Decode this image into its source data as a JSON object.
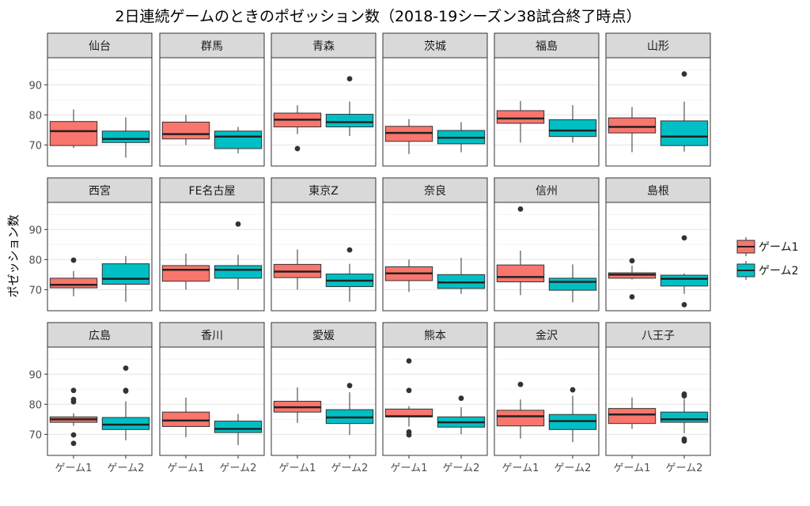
{
  "chart_data": {
    "type": "boxplot",
    "title": "2日連続ゲームのときのポゼッション数（2018-19シーズン38試合終了時点）",
    "ylabel": "ポゼッション数",
    "xlabel": "",
    "ylim": [
      63,
      99
    ],
    "y_ticks": [
      70,
      80,
      90
    ],
    "categories": [
      "ゲーム1",
      "ゲーム2"
    ],
    "legend": {
      "position": "right",
      "entries": [
        {
          "label": "ゲーム1",
          "color": "#F8766D"
        },
        {
          "label": "ゲーム2",
          "color": "#00BFC4"
        }
      ]
    },
    "grid": true,
    "panels": [
      {
        "team": "仙台",
        "boxes": [
          {
            "whisker_low": 69,
            "q1": 69.8,
            "median": 74.6,
            "q3": 77.8,
            "whisker_high": 81.8,
            "outliers": []
          },
          {
            "whisker_low": 65.8,
            "q1": 70.8,
            "median": 72,
            "q3": 74.6,
            "whisker_high": 79.2,
            "outliers": []
          }
        ]
      },
      {
        "team": "群馬",
        "boxes": [
          {
            "whisker_low": 70,
            "q1": 72,
            "median": 73.6,
            "q3": 77.6,
            "whisker_high": 80,
            "outliers": []
          },
          {
            "whisker_low": 67.2,
            "q1": 68.8,
            "median": 72.8,
            "q3": 74.6,
            "whisker_high": 76,
            "outliers": []
          }
        ]
      },
      {
        "team": "青森",
        "boxes": [
          {
            "whisker_low": 73.6,
            "q1": 76,
            "median": 78.4,
            "q3": 80.6,
            "whisker_high": 83.2,
            "outliers": [
              68.8
            ]
          },
          {
            "whisker_low": 73,
            "q1": 76,
            "median": 77.6,
            "q3": 80.2,
            "whisker_high": 84.4,
            "outliers": [
              92
            ]
          }
        ]
      },
      {
        "team": "茨城",
        "boxes": [
          {
            "whisker_low": 67,
            "q1": 71.2,
            "median": 74,
            "q3": 76.2,
            "whisker_high": 78.6,
            "outliers": []
          },
          {
            "whisker_low": 67.6,
            "q1": 70.4,
            "median": 72.4,
            "q3": 74.8,
            "whisker_high": 77.6,
            "outliers": []
          }
        ]
      },
      {
        "team": "福島",
        "boxes": [
          {
            "whisker_low": 70.8,
            "q1": 77.2,
            "median": 78.8,
            "q3": 81.4,
            "whisker_high": 84.6,
            "outliers": []
          },
          {
            "whisker_low": 70.8,
            "q1": 72.8,
            "median": 74.8,
            "q3": 78.4,
            "whisker_high": 83.2,
            "outliers": []
          }
        ]
      },
      {
        "team": "山形",
        "boxes": [
          {
            "whisker_low": 67.6,
            "q1": 74,
            "median": 76,
            "q3": 79,
            "whisker_high": 82.6,
            "outliers": []
          },
          {
            "whisker_low": 67.8,
            "q1": 69.8,
            "median": 72.8,
            "q3": 78,
            "whisker_high": 84.4,
            "outliers": [
              93.6
            ]
          }
        ]
      },
      {
        "team": "西宮",
        "boxes": [
          {
            "whisker_low": 67.8,
            "q1": 70.6,
            "median": 71.6,
            "q3": 73.8,
            "whisker_high": 76.2,
            "outliers": [
              79.8
            ]
          },
          {
            "whisker_low": 66,
            "q1": 71.8,
            "median": 73.6,
            "q3": 78.6,
            "whisker_high": 81.2,
            "outliers": []
          }
        ]
      },
      {
        "team": "FE名古屋",
        "boxes": [
          {
            "whisker_low": 70,
            "q1": 72.8,
            "median": 76.6,
            "q3": 78,
            "whisker_high": 82,
            "outliers": []
          },
          {
            "whisker_low": 70,
            "q1": 73.8,
            "median": 76.6,
            "q3": 78,
            "whisker_high": 81.6,
            "outliers": [
              91.8
            ]
          }
        ]
      },
      {
        "team": "東京Z",
        "boxes": [
          {
            "whisker_low": 70,
            "q1": 74,
            "median": 76,
            "q3": 78.4,
            "whisker_high": 83.4,
            "outliers": []
          },
          {
            "whisker_low": 66,
            "q1": 71,
            "median": 73,
            "q3": 75.2,
            "whisker_high": 78.6,
            "outliers": [
              83.2
            ]
          }
        ]
      },
      {
        "team": "奈良",
        "boxes": [
          {
            "whisker_low": 69.2,
            "q1": 73,
            "median": 75.4,
            "q3": 77.6,
            "whisker_high": 80,
            "outliers": []
          },
          {
            "whisker_low": 68.6,
            "q1": 70.4,
            "median": 72.4,
            "q3": 75,
            "whisker_high": 80.6,
            "outliers": []
          }
        ]
      },
      {
        "team": "信州",
        "boxes": [
          {
            "whisker_low": 68.2,
            "q1": 72.6,
            "median": 74.2,
            "q3": 78.2,
            "whisker_high": 83,
            "outliers": [
              96.8
            ]
          },
          {
            "whisker_low": 65.8,
            "q1": 69.8,
            "median": 72.6,
            "q3": 73.8,
            "whisker_high": 78.4,
            "outliers": []
          }
        ]
      },
      {
        "team": "島根",
        "boxes": [
          {
            "whisker_low": 73.4,
            "q1": 73.8,
            "median": 75,
            "q3": 75.6,
            "whisker_high": 78,
            "outliers": [
              79.6,
              67.6
            ]
          },
          {
            "whisker_low": 68.6,
            "q1": 71.2,
            "median": 73.6,
            "q3": 74.8,
            "whisker_high": 75.4,
            "outliers": [
              87.2,
              65
            ]
          }
        ]
      },
      {
        "team": "広島",
        "boxes": [
          {
            "whisker_low": 72.8,
            "q1": 74,
            "median": 75,
            "q3": 75.8,
            "whisker_high": 77,
            "outliers": [
              84.6,
              81.6,
              80.8,
              69.8,
              67
            ]
          },
          {
            "whisker_low": 68,
            "q1": 71.6,
            "median": 73.2,
            "q3": 75.6,
            "whisker_high": 81,
            "outliers": [
              92,
              84.6,
              84.4
            ]
          }
        ]
      },
      {
        "team": "香川",
        "boxes": [
          {
            "whisker_low": 69,
            "q1": 72.6,
            "median": 74.6,
            "q3": 77.4,
            "whisker_high": 82.2,
            "outliers": []
          },
          {
            "whisker_low": 66.4,
            "q1": 70.6,
            "median": 71.8,
            "q3": 74.4,
            "whisker_high": 76.8,
            "outliers": []
          }
        ]
      },
      {
        "team": "愛媛",
        "boxes": [
          {
            "whisker_low": 73.8,
            "q1": 77.4,
            "median": 79,
            "q3": 81,
            "whisker_high": 85.6,
            "outliers": []
          },
          {
            "whisker_low": 69.8,
            "q1": 73.6,
            "median": 75.6,
            "q3": 78.2,
            "whisker_high": 84,
            "outliers": [
              86.2
            ]
          }
        ]
      },
      {
        "team": "熊本",
        "boxes": [
          {
            "whisker_low": 72.6,
            "q1": 75.8,
            "median": 76,
            "q3": 78.4,
            "whisker_high": 79.4,
            "outliers": [
              94.4,
              84.6,
              70.8,
              69.8
            ]
          },
          {
            "whisker_low": 70,
            "q1": 72.4,
            "median": 74,
            "q3": 75.8,
            "whisker_high": 79,
            "outliers": [
              82
            ]
          }
        ]
      },
      {
        "team": "金沢",
        "boxes": [
          {
            "whisker_low": 68.6,
            "q1": 72.8,
            "median": 76,
            "q3": 78,
            "whisker_high": 81.6,
            "outliers": [
              86.6
            ]
          },
          {
            "whisker_low": 67.4,
            "q1": 71.6,
            "median": 74.4,
            "q3": 76.6,
            "whisker_high": 82.8,
            "outliers": [
              84.8
            ]
          }
        ]
      },
      {
        "team": "八王子",
        "boxes": [
          {
            "whisker_low": 71.8,
            "q1": 73.6,
            "median": 76.6,
            "q3": 78.6,
            "whisker_high": 82.2,
            "outliers": []
          },
          {
            "whisker_low": 70.4,
            "q1": 74,
            "median": 75,
            "q3": 77.4,
            "whisker_high": 81.8,
            "outliers": [
              83.4,
              82.8,
              68.4,
              67.8
            ]
          }
        ]
      }
    ]
  }
}
